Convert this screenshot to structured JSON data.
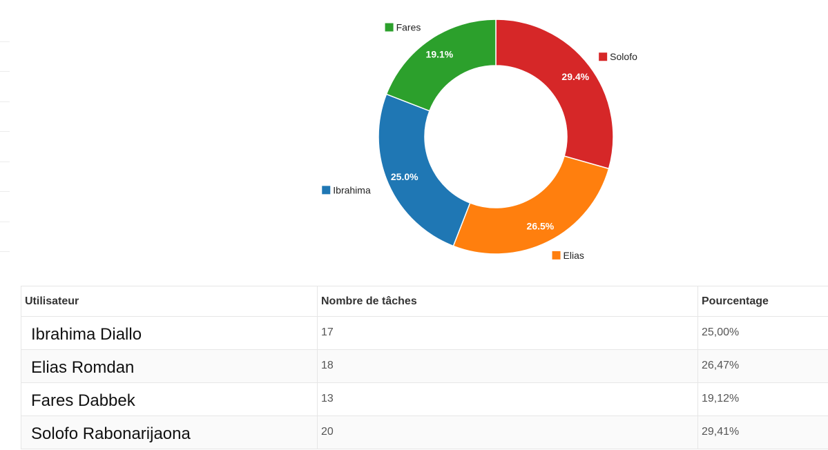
{
  "chart_data": {
    "type": "pie",
    "donut": true,
    "slices": [
      {
        "name": "Solofo",
        "value": 29.4,
        "label": "29.4%",
        "color": "#d62728"
      },
      {
        "name": "Elias",
        "value": 26.5,
        "label": "26.5%",
        "color": "#ff7f0e"
      },
      {
        "name": "Ibrahima",
        "value": 25.0,
        "label": "25.0%",
        "color": "#1f77b4"
      },
      {
        "name": "Fares",
        "value": 19.1,
        "label": "19.1%",
        "color": "#2ca02c"
      }
    ],
    "legend_placement": "beside slices"
  },
  "table": {
    "headers": [
      "Utilisateur",
      "Nombre de tâches",
      "Pourcentage"
    ],
    "rows": [
      {
        "user": "Ibrahima Diallo",
        "tasks": "17",
        "percent": "25,00%"
      },
      {
        "user": "Elias Romdan",
        "tasks": "18",
        "percent": "26,47%"
      },
      {
        "user": "Fares Dabbek",
        "tasks": "13",
        "percent": "19,12%"
      },
      {
        "user": "Solofo Rabonarijaona",
        "tasks": "20",
        "percent": "29,41%"
      }
    ]
  }
}
